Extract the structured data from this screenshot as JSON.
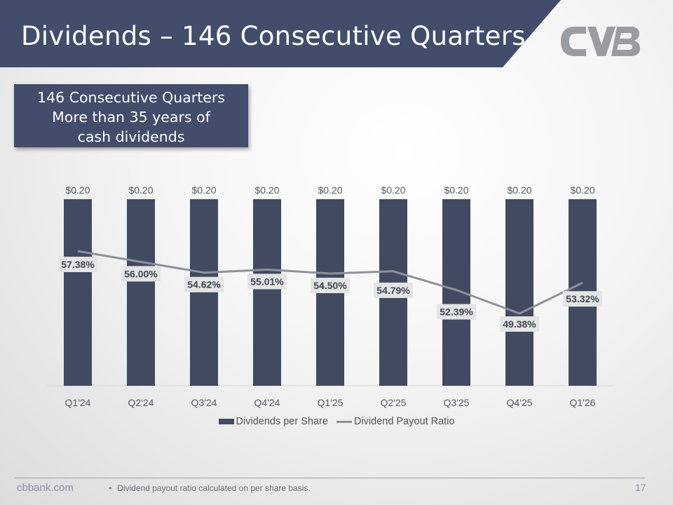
{
  "header": {
    "title": "Dividends – 146 Consecutive Quarters",
    "banner_color": "#414d6b"
  },
  "callout": {
    "lines": [
      "146 Consecutive Quarters",
      "More than 35 years of",
      "cash dividends"
    ]
  },
  "chart_data": {
    "type": "bar",
    "title": "",
    "categories": [
      "Q1'24",
      "Q2'24",
      "Q3'24",
      "Q4'24",
      "Q1'25",
      "Q2'25",
      "Q3'25",
      "Q4'25",
      "Q1'26"
    ],
    "series": [
      {
        "name": "Dividends per Share",
        "type": "bar",
        "values": [
          0.2,
          0.2,
          0.2,
          0.2,
          0.2,
          0.2,
          0.2,
          0.2,
          0.2
        ],
        "labels": [
          "$0.20",
          "$0.20",
          "$0.20",
          "$0.20",
          "$0.20",
          "$0.20",
          "$0.20",
          "$0.20",
          "$0.20"
        ],
        "color": "#414a60"
      },
      {
        "name": "Dividend Payout Ratio",
        "type": "line",
        "values": [
          57.38,
          56.0,
          54.62,
          55.01,
          54.5,
          54.79,
          52.39,
          49.38,
          53.32
        ],
        "labels": [
          "57.38%",
          "56.00%",
          "54.62%",
          "55.01%",
          "54.50%",
          "54.79%",
          "52.39%",
          "49.38%",
          "53.32%"
        ],
        "color": "#8d919b"
      }
    ],
    "legend": "bottom",
    "grid": false
  },
  "legend": {
    "bar_label": "Dividends per Share",
    "line_label": "Dividend Payout Ratio"
  },
  "footer": {
    "site": "cbbank.com",
    "note": "Dividend payout ratio calculated on per share basis.",
    "bullet": "•",
    "page_number": "17"
  }
}
